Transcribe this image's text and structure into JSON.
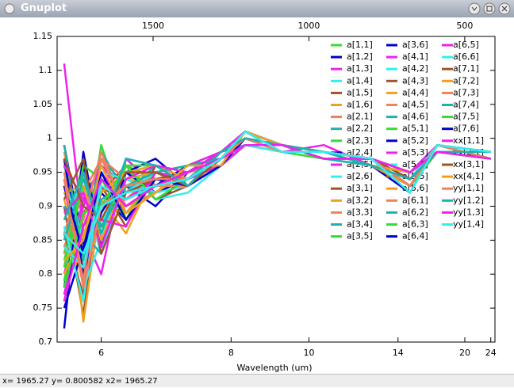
{
  "window": {
    "title": "Gnuplot",
    "status": "x= 1965.27 y= 0.800582 x2= 1965.27"
  },
  "chart_data": {
    "type": "line",
    "xlabel": "Wavelength (um)",
    "xscale": "reciprocal",
    "xlim": [
      5.53,
      24.8
    ],
    "xticks": [
      6,
      8,
      10,
      14,
      20,
      24
    ],
    "x2lim": [
      1808,
      403
    ],
    "x2ticks": [
      1500,
      1000,
      500
    ],
    "ylim": [
      0.7,
      1.15
    ],
    "yticks": [
      0.7,
      0.75,
      0.8,
      0.85,
      0.9,
      0.95,
      1,
      1.05,
      1.1,
      1.15
    ],
    "legend": "top-right",
    "x": [
      5.6,
      5.8,
      6.0,
      6.3,
      6.7,
      7.2,
      7.8,
      8.3,
      9.2,
      10.5,
      12.5,
      14.8,
      17,
      24
    ],
    "series": [
      {
        "name": "a[1,1]",
        "color": "#33dd33",
        "values": [
          0.95,
          0.82,
          0.99,
          0.88,
          0.96,
          0.93,
          0.97,
          1.0,
          0.99,
          0.98,
          0.96,
          0.94,
          0.98,
          0.97
        ]
      },
      {
        "name": "a[1,2]",
        "color": "#0000cc",
        "values": [
          0.78,
          0.96,
          0.85,
          0.93,
          0.9,
          0.95,
          0.98,
          1.01,
          0.99,
          0.98,
          0.97,
          0.95,
          0.99,
          0.98
        ]
      },
      {
        "name": "a[1,3]",
        "color": "#ee22ee",
        "values": [
          1.11,
          0.86,
          0.8,
          0.97,
          0.93,
          0.94,
          0.97,
          1.0,
          0.98,
          0.99,
          0.96,
          0.94,
          0.98,
          0.97
        ]
      },
      {
        "name": "a[1,4]",
        "color": "#33eeee",
        "values": [
          0.85,
          0.92,
          0.83,
          0.95,
          0.91,
          0.92,
          0.96,
          0.99,
          0.98,
          0.98,
          0.97,
          0.93,
          0.99,
          0.98
        ]
      },
      {
        "name": "a[1,5]",
        "color": "#a0522d",
        "values": [
          0.9,
          0.74,
          0.95,
          0.89,
          0.94,
          0.95,
          0.97,
          1.0,
          0.99,
          0.98,
          0.96,
          0.95,
          0.98,
          0.97
        ]
      },
      {
        "name": "a[1,6]",
        "color": "#f0a020",
        "values": [
          0.97,
          0.73,
          0.91,
          0.86,
          0.95,
          0.93,
          0.96,
          1.0,
          0.99,
          0.97,
          0.96,
          0.94,
          0.98,
          0.98
        ]
      },
      {
        "name": "a[2,1]",
        "color": "#f08060",
        "values": [
          0.87,
          0.8,
          0.94,
          0.9,
          0.92,
          0.94,
          0.97,
          1.01,
          0.99,
          0.98,
          0.97,
          0.95,
          0.98,
          0.97
        ]
      },
      {
        "name": "a[2,2]",
        "color": "#20b0b0",
        "values": [
          0.92,
          0.88,
          0.98,
          0.92,
          0.96,
          0.93,
          0.97,
          1.0,
          0.98,
          0.98,
          0.96,
          0.94,
          0.99,
          0.98
        ]
      },
      {
        "name": "a[2,3]",
        "color": "#33dd33",
        "values": [
          0.83,
          0.97,
          0.87,
          0.95,
          0.93,
          0.96,
          0.98,
          1.0,
          0.99,
          0.98,
          0.97,
          0.93,
          0.98,
          0.97
        ]
      },
      {
        "name": "a[2,4]",
        "color": "#0000cc",
        "values": [
          0.99,
          0.84,
          0.92,
          0.88,
          0.95,
          0.94,
          0.96,
          0.99,
          0.99,
          0.98,
          0.96,
          0.94,
          0.98,
          0.98
        ]
      },
      {
        "name": "a[2,5]",
        "color": "#ee22ee",
        "values": [
          0.8,
          0.91,
          0.96,
          0.93,
          0.92,
          0.95,
          0.97,
          1.0,
          0.98,
          0.98,
          0.97,
          0.95,
          0.99,
          0.97
        ]
      },
      {
        "name": "a[2,6]",
        "color": "#33eeee",
        "values": [
          0.94,
          0.78,
          0.85,
          0.96,
          0.94,
          0.93,
          0.97,
          1.01,
          0.99,
          0.97,
          0.96,
          0.94,
          0.98,
          0.98
        ]
      },
      {
        "name": "a[3,1]",
        "color": "#a0522d",
        "values": [
          0.76,
          0.89,
          0.93,
          0.87,
          0.96,
          0.94,
          0.96,
          1.0,
          0.99,
          0.98,
          0.97,
          0.95,
          0.98,
          0.97
        ]
      },
      {
        "name": "a[3,2]",
        "color": "#f0a020",
        "values": [
          0.91,
          0.81,
          0.88,
          0.94,
          0.93,
          0.95,
          0.97,
          1.0,
          0.98,
          0.98,
          0.96,
          0.93,
          0.99,
          0.98
        ]
      },
      {
        "name": "a[3,3]",
        "color": "#f08060",
        "values": [
          0.86,
          0.95,
          0.9,
          0.91,
          0.95,
          0.93,
          0.98,
          1.01,
          0.99,
          0.98,
          0.97,
          0.94,
          0.98,
          0.97
        ]
      },
      {
        "name": "a[3,4]",
        "color": "#20b0b0",
        "values": [
          0.96,
          0.85,
          0.97,
          0.93,
          0.92,
          0.94,
          0.96,
          0.99,
          0.99,
          0.97,
          0.96,
          0.95,
          0.98,
          0.98
        ]
      },
      {
        "name": "a[3,5]",
        "color": "#33dd33",
        "values": [
          0.82,
          0.93,
          0.89,
          0.96,
          0.94,
          0.95,
          0.97,
          1.0,
          0.98,
          0.98,
          0.97,
          0.94,
          0.99,
          0.97
        ]
      },
      {
        "name": "a[3,6]",
        "color": "#0000cc",
        "values": [
          0.72,
          0.98,
          0.84,
          0.95,
          0.97,
          0.93,
          0.97,
          1.0,
          0.99,
          0.98,
          0.96,
          0.93,
          0.98,
          0.98
        ]
      },
      {
        "name": "a[4,1]",
        "color": "#ee22ee",
        "values": [
          0.93,
          0.79,
          0.95,
          0.9,
          0.93,
          0.96,
          0.98,
          1.01,
          0.99,
          0.98,
          0.97,
          0.95,
          0.98,
          0.97
        ]
      },
      {
        "name": "a[4,2]",
        "color": "#33eeee",
        "values": [
          0.88,
          0.94,
          0.86,
          0.92,
          0.95,
          0.94,
          0.96,
          1.0,
          0.98,
          0.98,
          0.96,
          0.94,
          0.99,
          0.98
        ]
      },
      {
        "name": "a[4,3]",
        "color": "#a0522d",
        "values": [
          0.79,
          0.87,
          0.92,
          0.96,
          0.91,
          0.93,
          0.97,
          1.0,
          0.99,
          0.97,
          0.97,
          0.94,
          0.98,
          0.97
        ]
      },
      {
        "name": "a[4,4]",
        "color": "#f0a020",
        "values": [
          0.98,
          0.83,
          0.9,
          0.89,
          0.94,
          0.95,
          0.97,
          0.99,
          0.99,
          0.98,
          0.96,
          0.95,
          0.98,
          0.98
        ]
      },
      {
        "name": "a[4,5]",
        "color": "#f08060",
        "values": [
          0.84,
          0.92,
          0.97,
          0.94,
          0.96,
          0.94,
          0.98,
          1.0,
          0.98,
          0.98,
          0.97,
          0.93,
          0.99,
          0.97
        ]
      },
      {
        "name": "a[4,6]",
        "color": "#20b0b0",
        "values": [
          0.9,
          0.86,
          0.83,
          0.92,
          0.93,
          0.93,
          0.96,
          1.01,
          0.99,
          0.98,
          0.96,
          0.94,
          0.98,
          0.98
        ]
      },
      {
        "name": "a[5,1]",
        "color": "#33dd33",
        "values": [
          0.81,
          0.96,
          0.94,
          0.88,
          0.95,
          0.96,
          0.97,
          1.0,
          0.99,
          0.97,
          0.97,
          0.95,
          0.98,
          0.97
        ]
      },
      {
        "name": "a[5,2]",
        "color": "#0000cc",
        "values": [
          0.97,
          0.8,
          0.89,
          0.95,
          0.92,
          0.94,
          0.97,
          1.0,
          0.98,
          0.98,
          0.96,
          0.92,
          0.99,
          0.98
        ]
      },
      {
        "name": "a[5,3]",
        "color": "#ee22ee",
        "values": [
          0.77,
          0.9,
          0.96,
          0.91,
          0.94,
          0.93,
          0.96,
          0.99,
          0.99,
          0.98,
          0.97,
          0.94,
          0.98,
          0.97
        ]
      },
      {
        "name": "a[5,4]",
        "color": "#33eeee",
        "values": [
          0.94,
          0.85,
          0.87,
          0.97,
          0.96,
          0.95,
          0.98,
          1.0,
          0.99,
          0.98,
          0.96,
          0.95,
          0.98,
          0.98
        ]
      },
      {
        "name": "a[5,5]",
        "color": "#a0522d",
        "values": [
          0.86,
          0.77,
          0.93,
          0.9,
          0.93,
          0.94,
          0.97,
          1.01,
          0.98,
          0.97,
          0.97,
          0.93,
          0.99,
          0.97
        ]
      },
      {
        "name": "a[5,6]",
        "color": "#f0a020",
        "values": [
          0.92,
          0.93,
          0.85,
          0.94,
          0.95,
          0.93,
          0.97,
          1.0,
          0.99,
          0.98,
          0.96,
          0.94,
          0.98,
          0.98
        ]
      },
      {
        "name": "a[6,1]",
        "color": "#f08060",
        "values": [
          0.83,
          0.88,
          0.98,
          0.89,
          0.92,
          0.95,
          0.96,
          1.0,
          0.99,
          0.98,
          0.97,
          0.95,
          0.98,
          0.97
        ]
      },
      {
        "name": "a[6,2]",
        "color": "#20b0b0",
        "values": [
          0.99,
          0.82,
          0.91,
          0.93,
          0.94,
          0.94,
          0.98,
          0.99,
          0.98,
          0.98,
          0.96,
          0.94,
          0.99,
          0.98
        ]
      },
      {
        "name": "a[6,3]",
        "color": "#33dd33",
        "values": [
          0.79,
          0.95,
          0.86,
          0.96,
          0.96,
          0.93,
          0.97,
          1.0,
          0.99,
          0.97,
          0.97,
          0.93,
          0.98,
          0.97
        ]
      },
      {
        "name": "a[6,4]",
        "color": "#0000cc",
        "values": [
          0.75,
          0.84,
          0.94,
          0.91,
          0.93,
          0.96,
          0.97,
          1.01,
          0.99,
          0.98,
          0.96,
          0.95,
          0.98,
          0.98
        ]
      },
      {
        "name": "a[6,5]",
        "color": "#ee22ee",
        "values": [
          0.96,
          0.91,
          0.88,
          0.87,
          0.95,
          0.94,
          0.96,
          1.0,
          0.98,
          0.98,
          0.97,
          0.94,
          0.99,
          0.97
        ]
      },
      {
        "name": "a[6,6]",
        "color": "#33eeee",
        "values": [
          0.87,
          0.76,
          0.95,
          0.94,
          0.92,
          0.93,
          0.97,
          1.0,
          0.99,
          0.98,
          0.96,
          0.94,
          0.98,
          0.98
        ]
      },
      {
        "name": "a[7,1]",
        "color": "#a0522d",
        "values": [
          0.91,
          0.97,
          0.83,
          0.92,
          0.94,
          0.95,
          0.98,
          1.0,
          0.99,
          0.97,
          0.97,
          0.95,
          0.98,
          0.97
        ]
      },
      {
        "name": "a[7,2]",
        "color": "#f0a020",
        "values": [
          0.8,
          0.86,
          0.92,
          0.95,
          0.96,
          0.94,
          0.97,
          0.99,
          0.98,
          0.98,
          0.96,
          0.93,
          0.99,
          0.98
        ]
      },
      {
        "name": "a[7,3]",
        "color": "#f08060",
        "values": [
          0.95,
          0.79,
          0.97,
          0.9,
          0.93,
          0.93,
          0.96,
          1.0,
          0.99,
          0.98,
          0.97,
          0.94,
          0.98,
          0.97
        ]
      },
      {
        "name": "a[7,4]",
        "color": "#20b0b0",
        "values": [
          0.85,
          0.94,
          0.87,
          0.93,
          0.95,
          0.96,
          0.97,
          1.01,
          0.99,
          0.98,
          0.96,
          0.95,
          0.98,
          0.98
        ]
      },
      {
        "name": "a[7,5]",
        "color": "#33dd33",
        "values": [
          0.78,
          0.89,
          0.9,
          0.96,
          0.91,
          0.94,
          0.97,
          1.0,
          0.98,
          0.97,
          0.97,
          0.93,
          0.99,
          0.97
        ]
      },
      {
        "name": "a[7,6]",
        "color": "#0000cc",
        "values": [
          0.93,
          0.83,
          0.95,
          0.88,
          0.94,
          0.93,
          0.96,
          1.0,
          0.99,
          0.98,
          0.96,
          0.94,
          0.98,
          0.98
        ]
      },
      {
        "name": "xx[1,1]",
        "color": "#ee22ee",
        "values": [
          0.89,
          0.92,
          0.84,
          0.94,
          0.96,
          0.95,
          0.98,
          1.0,
          0.99,
          0.98,
          0.97,
          0.95,
          0.98,
          0.97
        ]
      },
      {
        "name": "xx[2,1]",
        "color": "#33eeee",
        "values": [
          0.84,
          0.81,
          0.93,
          0.91,
          0.93,
          0.94,
          0.97,
          0.99,
          0.98,
          0.98,
          0.96,
          0.94,
          0.99,
          0.98
        ]
      },
      {
        "name": "xx[3,1]",
        "color": "#a0522d",
        "values": [
          0.97,
          0.9,
          0.88,
          0.95,
          0.95,
          0.93,
          0.97,
          1.0,
          0.99,
          0.97,
          0.97,
          0.94,
          0.98,
          0.97
        ]
      },
      {
        "name": "xx[4,1]",
        "color": "#f0a020",
        "values": [
          0.82,
          0.85,
          0.96,
          0.89,
          0.92,
          0.96,
          0.96,
          1.01,
          0.99,
          0.98,
          0.96,
          0.95,
          0.98,
          0.98
        ]
      },
      {
        "name": "yy[1,1]",
        "color": "#f08060",
        "values": [
          0.94,
          0.78,
          0.9,
          0.93,
          0.94,
          0.94,
          0.97,
          1.0,
          0.98,
          0.98,
          0.97,
          0.93,
          0.99,
          0.97
        ]
      },
      {
        "name": "yy[1,2]",
        "color": "#20b0b0",
        "values": [
          0.88,
          0.95,
          0.86,
          0.97,
          0.96,
          0.93,
          0.98,
          1.0,
          0.99,
          0.98,
          0.96,
          0.94,
          0.98,
          0.98
        ]
      },
      {
        "name": "yy[1,3]",
        "color": "#ee22ee",
        "values": [
          0.76,
          0.87,
          0.94,
          0.9,
          0.93,
          0.95,
          0.97,
          0.99,
          0.99,
          0.97,
          0.97,
          0.95,
          0.98,
          0.97
        ]
      },
      {
        "name": "yy[1,4]",
        "color": "#33eeee",
        "values": [
          0.86,
          0.83,
          0.9,
          0.92,
          0.93,
          0.94,
          0.97,
          1.01,
          0.98,
          0.98,
          0.97,
          0.92,
          0.99,
          0.98
        ]
      }
    ]
  }
}
